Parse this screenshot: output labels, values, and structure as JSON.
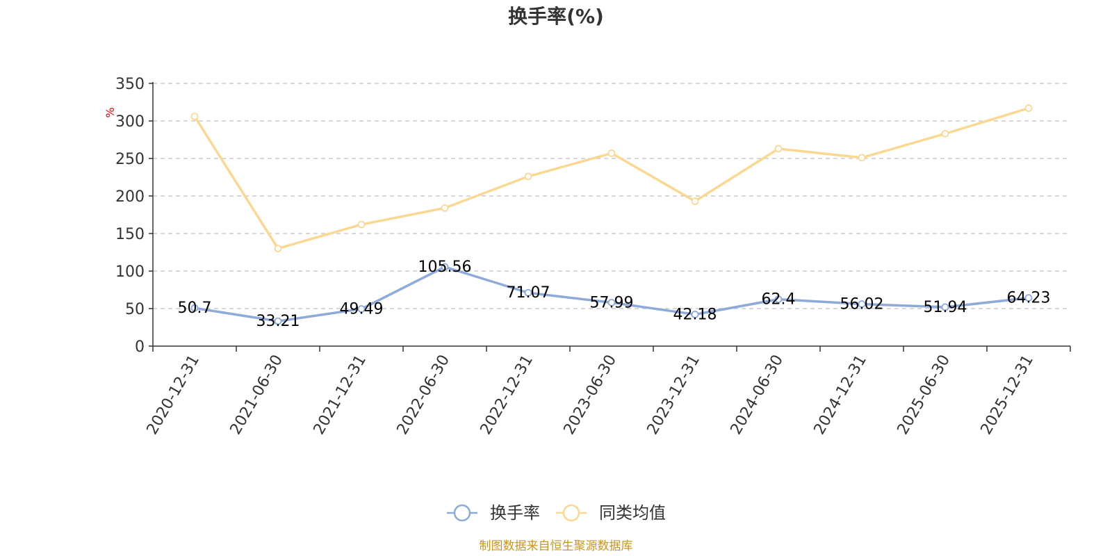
{
  "chart_data": {
    "type": "line",
    "title": "换手率(%)",
    "ylabel": "%",
    "ylim": [
      0,
      350
    ],
    "yticks": [
      0,
      50,
      100,
      150,
      200,
      250,
      300,
      350
    ],
    "grid": true,
    "legend_position": "bottom",
    "categories": [
      "2020-12-31",
      "2021-06-30",
      "2021-12-31",
      "2022-06-30",
      "2022-12-31",
      "2023-06-30",
      "2023-12-31",
      "2024-06-30",
      "2024-12-31",
      "2025-06-30",
      "2025-12-31"
    ],
    "series": [
      {
        "name": "换手率",
        "color": "#8eaad8",
        "values": [
          50.7,
          33.21,
          49.49,
          105.56,
          71.07,
          57.99,
          42.18,
          62.4,
          56.02,
          51.94,
          64.23
        ],
        "labels": [
          "50.7",
          "33.21",
          "49.49",
          "105.56",
          "71.07",
          "57.99",
          "42.18",
          "62.4",
          "56.02",
          "51.94",
          "64.23"
        ],
        "show_labels": true
      },
      {
        "name": "同类均值",
        "color": "#fbd892",
        "values": [
          306,
          130,
          162,
          184,
          226,
          257,
          193,
          263,
          251,
          283,
          317
        ],
        "show_labels": false
      }
    ],
    "source": "制图数据来自恒生聚源数据库"
  }
}
